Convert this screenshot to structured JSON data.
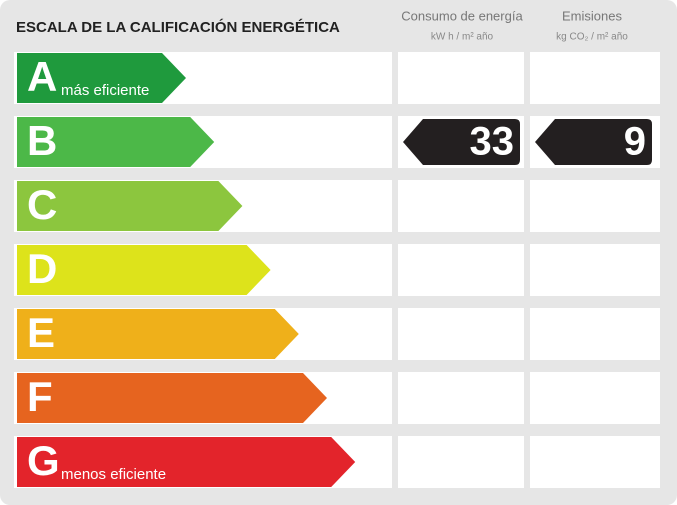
{
  "title": "ESCALA DE LA CALIFICACIÓN ENERGÉTICA",
  "columns": [
    {
      "title": "Consumo de energía",
      "unit": "kW h / m² año"
    },
    {
      "title": "Emisiones",
      "unit": "kg CO₂ / m² año"
    }
  ],
  "classes": [
    {
      "letter": "A",
      "label": "más eficiente",
      "color": "#1f9a3d"
    },
    {
      "letter": "B",
      "color": "#4cb848"
    },
    {
      "letter": "C",
      "color": "#8cc63e"
    },
    {
      "letter": "D",
      "color": "#dde31b"
    },
    {
      "letter": "E",
      "color": "#efb01a"
    },
    {
      "letter": "F",
      "color": "#e6641f"
    },
    {
      "letter": "G",
      "label": "menos eficiente",
      "color": "#e3242b"
    }
  ],
  "rating": {
    "class": "B",
    "consumption": 33,
    "emissions": 9
  }
}
